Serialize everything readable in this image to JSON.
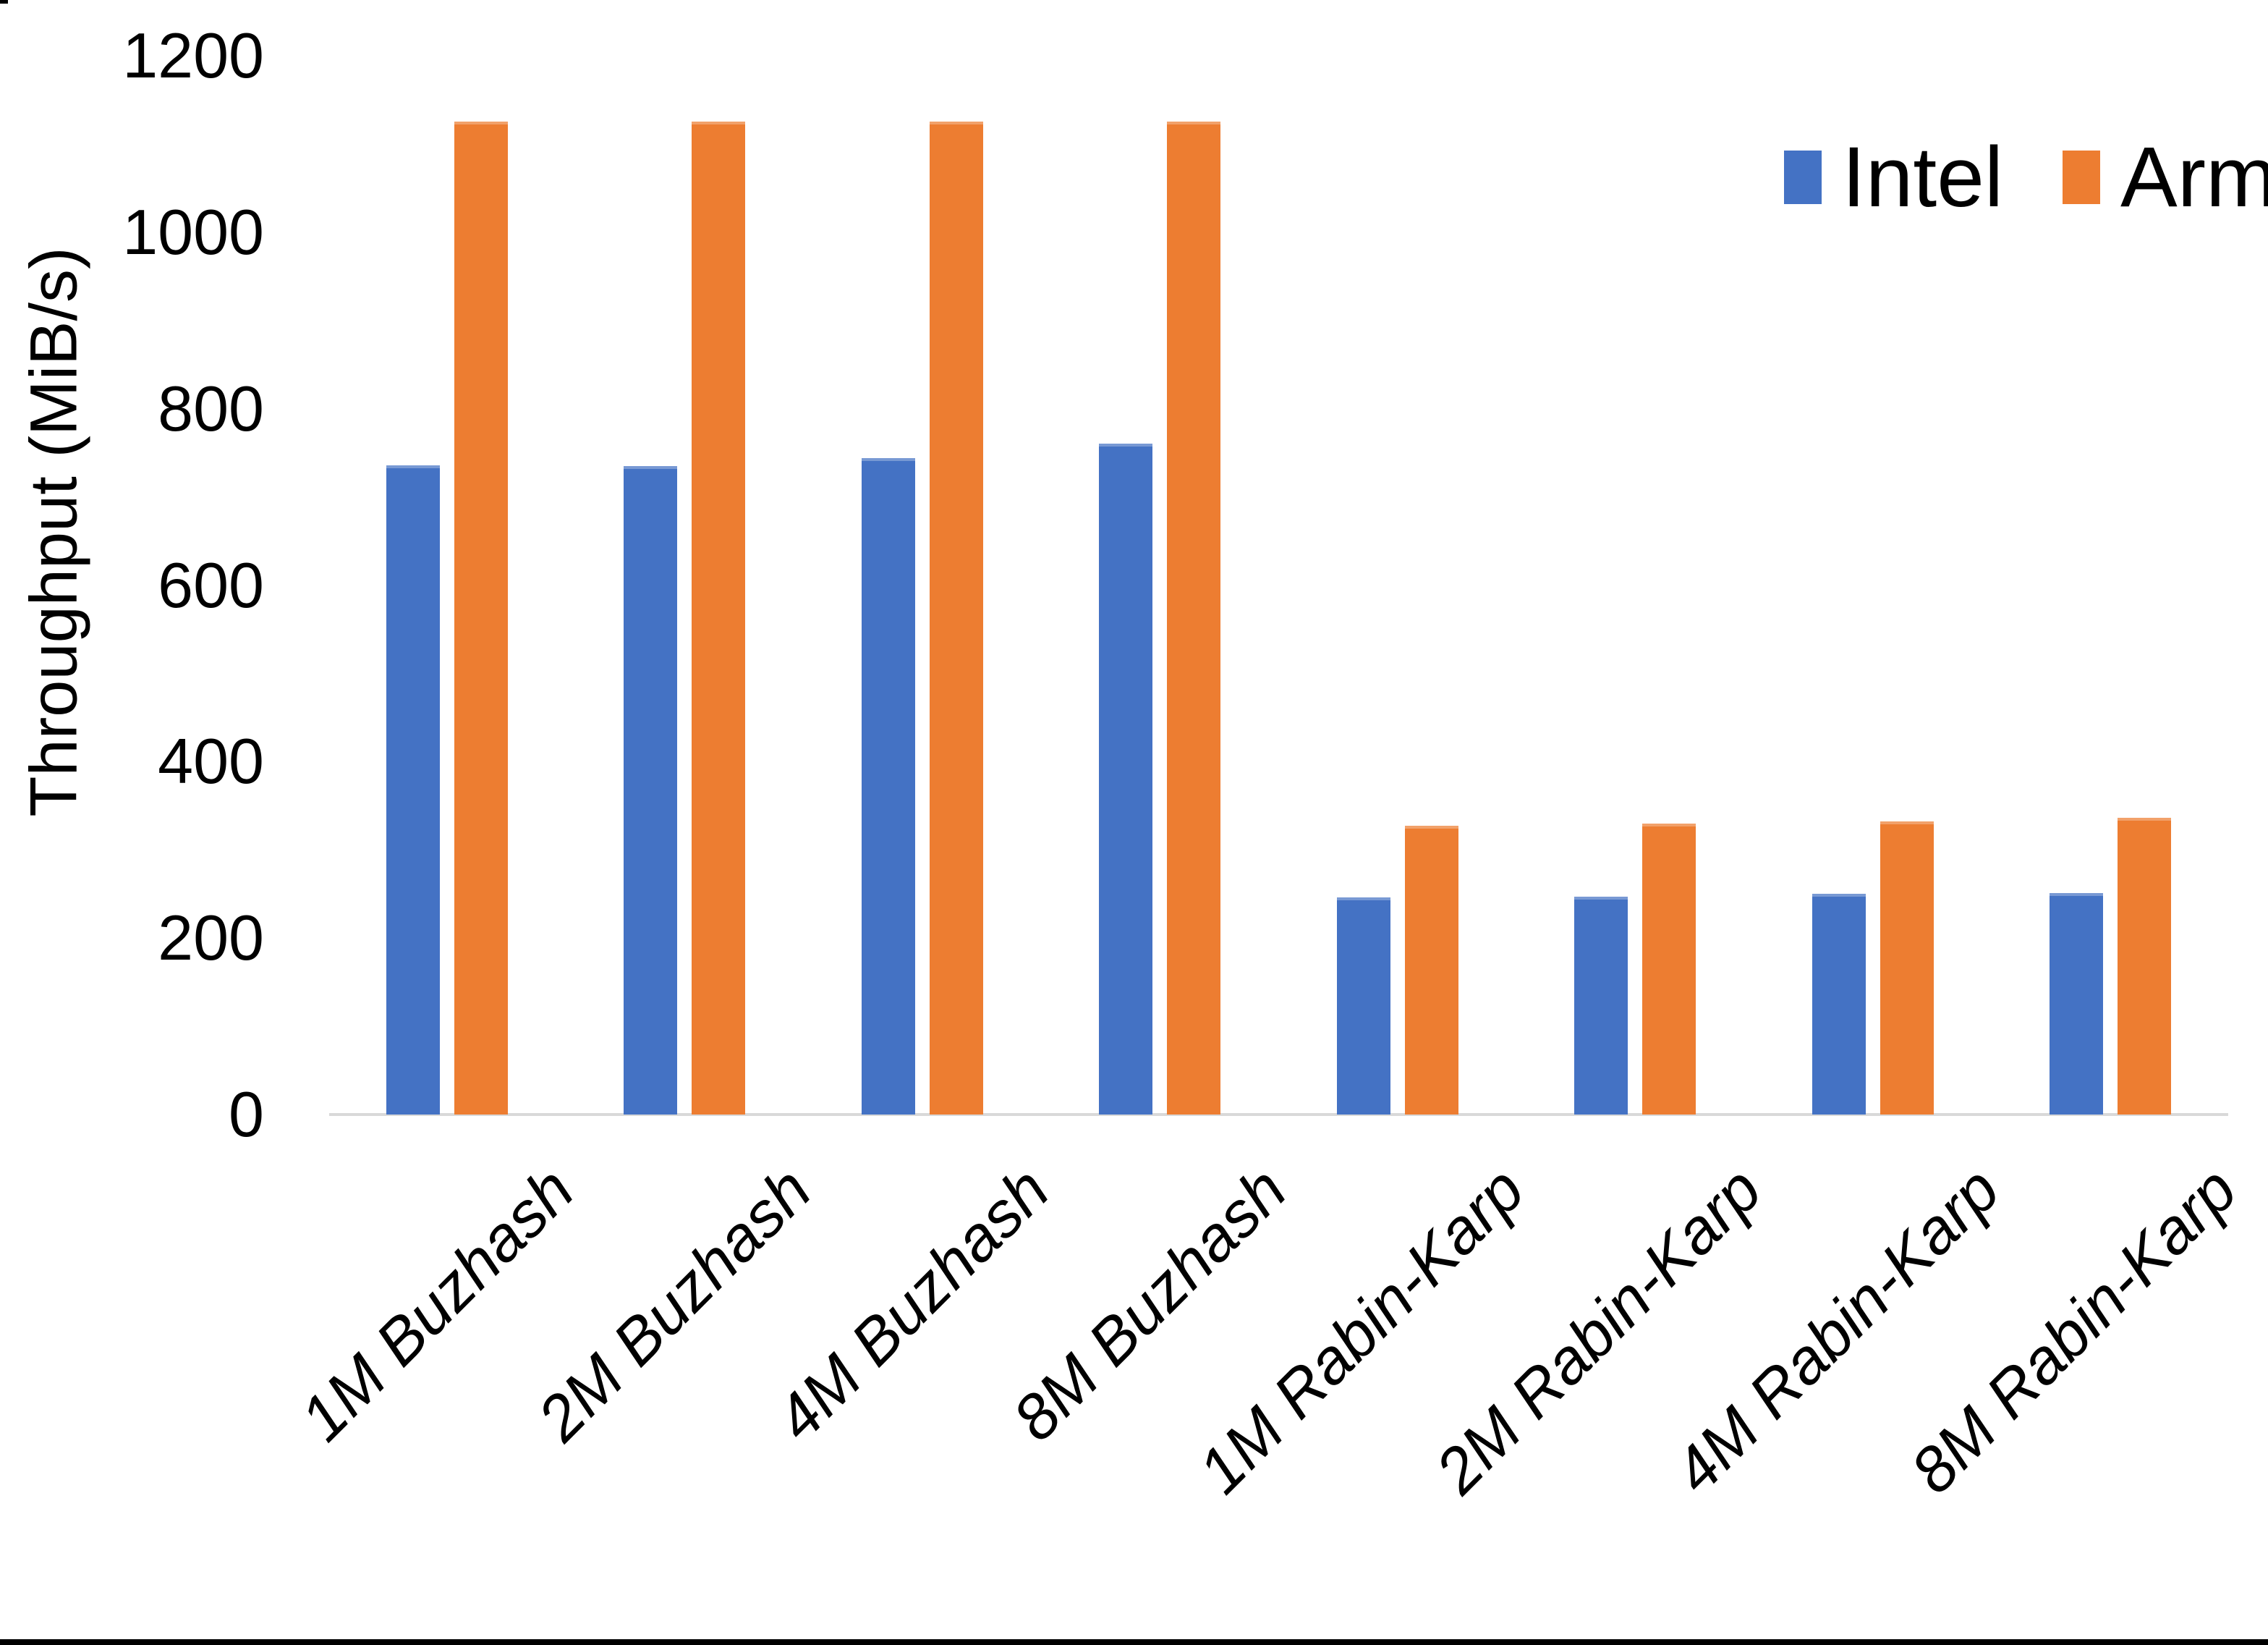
{
  "chart_data": {
    "type": "bar",
    "title": "",
    "xlabel": "",
    "ylabel": "Throughput (MiB/s)",
    "ylim": [
      0,
      1200
    ],
    "yticks": [
      0,
      200,
      400,
      600,
      800,
      1000,
      1200
    ],
    "grid": false,
    "legend_position": "top-right",
    "categories": [
      "1M Buzhash",
      "2M Buzhash",
      "4M Buzhash",
      "8M Buzhash",
      "1M Rabin-Karp",
      "2M Rabin-Karp",
      "4M Rabin-Karp",
      "8M Rabin-Karp"
    ],
    "series": [
      {
        "name": "Intel",
        "color": "#4472C4",
        "values": [
          736,
          735,
          744,
          760,
          246,
          247,
          250,
          251
        ]
      },
      {
        "name": "Arm",
        "color": "#ED7D31",
        "values": [
          1125,
          1125,
          1125,
          1125,
          327,
          330,
          332,
          336
        ]
      }
    ]
  },
  "colors": {
    "background": "#FFFFFF",
    "axis_line": "#D9D9D9",
    "text": "#000000",
    "bottom_edge_bar": "#000000"
  }
}
